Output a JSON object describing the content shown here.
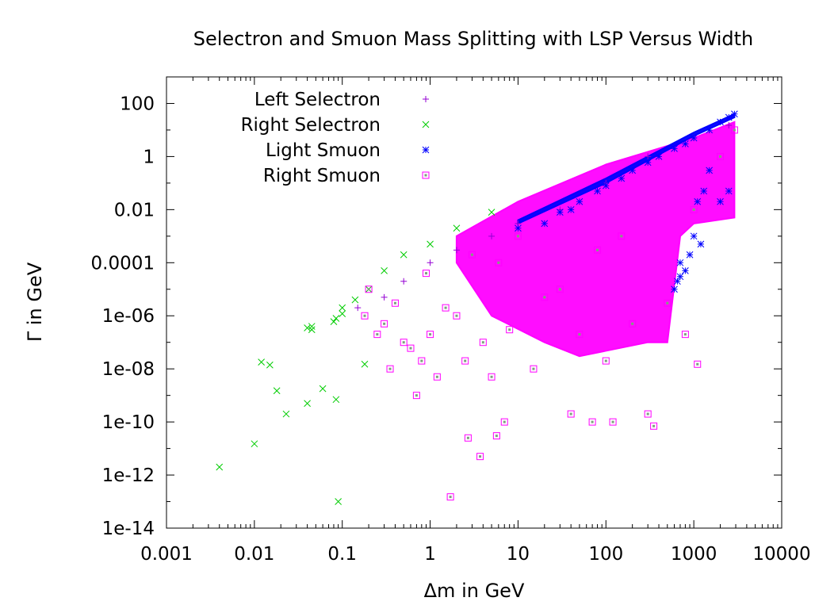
{
  "chart_data": {
    "type": "scatter",
    "title": "Selectron and Smuon Mass Splitting with LSP Versus Width",
    "xlabel": "Δm in GeV",
    "ylabel": "Γ in GeV",
    "xscale": "log",
    "yscale": "log",
    "xlim": [
      0.001,
      10000
    ],
    "ylim": [
      1e-14,
      1000
    ],
    "xticks": [
      {
        "value": 0.001,
        "label": "0.001"
      },
      {
        "value": 0.01,
        "label": "0.01"
      },
      {
        "value": 0.1,
        "label": "0.1"
      },
      {
        "value": 1,
        "label": "1"
      },
      {
        "value": 10,
        "label": "10"
      },
      {
        "value": 100,
        "label": "100"
      },
      {
        "value": 1000,
        "label": "1000"
      },
      {
        "value": 10000,
        "label": "10000"
      }
    ],
    "yticks": [
      {
        "value": 100,
        "label": "100"
      },
      {
        "value": 1,
        "label": "1"
      },
      {
        "value": 0.01,
        "label": "0.01"
      },
      {
        "value": 0.0001,
        "label": "0.0001"
      },
      {
        "value": 1e-06,
        "label": "1e-06"
      },
      {
        "value": 1e-08,
        "label": "1e-08"
      },
      {
        "value": 1e-10,
        "label": "1e-10"
      },
      {
        "value": 1e-12,
        "label": "1e-12"
      },
      {
        "value": 1e-14,
        "label": "1e-14"
      }
    ],
    "legend_position": "top-left",
    "series": [
      {
        "name": "Left Selectron",
        "marker": "plus",
        "color": "#9400d3",
        "points": [
          [
            0.15,
            2e-06
          ],
          [
            0.3,
            5e-06
          ],
          [
            0.5,
            2e-05
          ],
          [
            1.0,
            0.0001
          ],
          [
            2.0,
            0.0003
          ],
          [
            5.0,
            0.001
          ],
          [
            10,
            0.003
          ],
          [
            30,
            0.01
          ],
          [
            100,
            0.1
          ],
          [
            300,
            1
          ],
          [
            1000,
            5
          ],
          [
            2500,
            15
          ]
        ]
      },
      {
        "name": "Right Selectron",
        "marker": "cross",
        "color": "#00cc00",
        "points": [
          [
            0.004,
            2e-12
          ],
          [
            0.01,
            1.5e-11
          ],
          [
            0.012,
            1.8e-08
          ],
          [
            0.015,
            1.4e-08
          ],
          [
            0.018,
            1.5e-09
          ],
          [
            0.023,
            2e-10
          ],
          [
            0.04,
            3.5e-07
          ],
          [
            0.045,
            3e-07
          ],
          [
            0.045,
            4e-07
          ],
          [
            0.04,
            5e-10
          ],
          [
            0.06,
            1.8e-09
          ],
          [
            0.08,
            6e-07
          ],
          [
            0.085,
            8e-07
          ],
          [
            0.085,
            7e-10
          ],
          [
            0.09,
            1e-13
          ],
          [
            0.1,
            1.2e-06
          ],
          [
            0.1,
            2e-06
          ],
          [
            0.14,
            4e-06
          ],
          [
            0.18,
            1.5e-08
          ],
          [
            0.2,
            1e-05
          ],
          [
            0.3,
            5e-05
          ],
          [
            0.5,
            0.0002
          ],
          [
            1.0,
            0.0005
          ],
          [
            2.0,
            0.002
          ],
          [
            5.0,
            0.008
          ]
        ]
      },
      {
        "name": "Light Smuon",
        "marker": "star",
        "color": "#0000ff",
        "points": [
          [
            10,
            0.002
          ],
          [
            20,
            0.003
          ],
          [
            30,
            0.008
          ],
          [
            40,
            0.01
          ],
          [
            50,
            0.02
          ],
          [
            80,
            0.05
          ],
          [
            100,
            0.08
          ],
          [
            150,
            0.15
          ],
          [
            200,
            0.3
          ],
          [
            300,
            0.6
          ],
          [
            400,
            1
          ],
          [
            600,
            2
          ],
          [
            800,
            3
          ],
          [
            1000,
            5
          ],
          [
            1500,
            10
          ],
          [
            2000,
            20
          ],
          [
            2500,
            30
          ],
          [
            2900,
            40
          ],
          [
            600,
            1e-05
          ],
          [
            700,
            0.0001
          ],
          [
            800,
            5e-05
          ],
          [
            900,
            0.0002
          ],
          [
            1000,
            0.001
          ],
          [
            1200,
            0.0005
          ],
          [
            700,
            3e-05
          ],
          [
            650,
            2e-05
          ],
          [
            1100,
            0.02
          ],
          [
            1300,
            0.05
          ],
          [
            1500,
            0.3
          ],
          [
            2000,
            0.02
          ],
          [
            2500,
            0.05
          ]
        ]
      },
      {
        "name": "Right Smuon",
        "marker": "square",
        "color": "#ff00ff",
        "points": [
          [
            0.18,
            1e-06
          ],
          [
            0.2,
            1e-05
          ],
          [
            0.25,
            2e-07
          ],
          [
            0.3,
            5e-07
          ],
          [
            0.35,
            1e-08
          ],
          [
            0.4,
            3e-06
          ],
          [
            0.5,
            1e-07
          ],
          [
            0.6,
            6e-08
          ],
          [
            0.7,
            1e-09
          ],
          [
            0.8,
            2e-08
          ],
          [
            0.9,
            4e-05
          ],
          [
            1.0,
            2e-07
          ],
          [
            1.2,
            5e-09
          ],
          [
            1.5,
            2e-06
          ],
          [
            1.7,
            1.5e-13
          ],
          [
            2.0,
            1e-06
          ],
          [
            2.5,
            2e-08
          ],
          [
            2.7,
            2.5e-11
          ],
          [
            3.0,
            0.0002
          ],
          [
            3.7,
            5e-12
          ],
          [
            4.0,
            1e-07
          ],
          [
            5.0,
            5e-09
          ],
          [
            5.7,
            3e-11
          ],
          [
            6.0,
            0.0001
          ],
          [
            7.0,
            1e-10
          ],
          [
            8.0,
            3e-07
          ],
          [
            10,
            0.001
          ],
          [
            15,
            1e-08
          ],
          [
            20,
            5e-06
          ],
          [
            30,
            1e-05
          ],
          [
            40,
            2e-10
          ],
          [
            50,
            2e-07
          ],
          [
            70,
            1e-10
          ],
          [
            80,
            0.0003
          ],
          [
            100,
            2e-08
          ],
          [
            120,
            1e-10
          ],
          [
            150,
            0.001
          ],
          [
            200,
            5e-07
          ],
          [
            300,
            2e-10
          ],
          [
            350,
            7e-11
          ],
          [
            500,
            3e-06
          ],
          [
            800,
            2e-07
          ],
          [
            1100,
            1.5e-08
          ],
          [
            1000,
            0.01
          ],
          [
            2000,
            1
          ],
          [
            2900,
            10
          ]
        ]
      }
    ],
    "dense_regions": [
      {
        "series": "Right Smuon",
        "polygon": [
          [
            2,
            0.001
          ],
          [
            10,
            0.02
          ],
          [
            100,
            0.5
          ],
          [
            1000,
            5
          ],
          [
            2900,
            20
          ],
          [
            2900,
            0.005
          ],
          [
            1000,
            0.003
          ],
          [
            700,
            0.001
          ],
          [
            500,
            1e-07
          ],
          [
            300,
            1e-07
          ],
          [
            50,
            3e-08
          ],
          [
            20,
            1e-07
          ],
          [
            5,
            1e-06
          ],
          [
            2,
            0.0001
          ]
        ]
      },
      {
        "series": "Light Smuon",
        "polygon": [
          [
            10,
            0.004
          ],
          [
            100,
            0.15
          ],
          [
            1000,
            8
          ],
          [
            2900,
            40
          ],
          [
            2900,
            30
          ],
          [
            1000,
            6
          ],
          [
            100,
            0.1
          ],
          [
            10,
            0.003
          ]
        ]
      }
    ]
  }
}
